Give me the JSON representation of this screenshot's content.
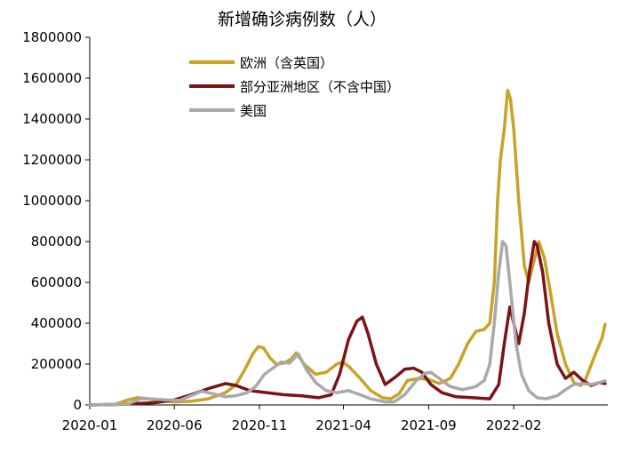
{
  "chart_data": {
    "type": "line",
    "title": "新增确诊病例数（人）",
    "xlabel": "",
    "ylabel": "",
    "ylim": [
      0,
      1800000
    ],
    "yticks": [
      0,
      200000,
      400000,
      600000,
      800000,
      1000000,
      1200000,
      1400000,
      1600000,
      1800000
    ],
    "ytick_labels": [
      "0",
      "200000",
      "400000",
      "600000",
      "800000",
      "1000000",
      "1200000",
      "1400000",
      "1600000",
      "1800000"
    ],
    "xlim": [
      "2020-01-01",
      "2022-07-20"
    ],
    "xtick_labels": [
      "2020-01",
      "2020-06",
      "2020-11",
      "2021-04",
      "2021-09",
      "2022-02"
    ],
    "grid": false,
    "legend_position": "top-center",
    "series": [
      {
        "name": "欧洲（含英国）",
        "color": "#C9A227",
        "points": [
          [
            "2020-01-01",
            0
          ],
          [
            "2020-02-15",
            2000
          ],
          [
            "2020-03-10",
            25000
          ],
          [
            "2020-03-25",
            35000
          ],
          [
            "2020-04-10",
            32000
          ],
          [
            "2020-05-01",
            22000
          ],
          [
            "2020-06-01",
            15000
          ],
          [
            "2020-07-01",
            18000
          ],
          [
            "2020-08-01",
            30000
          ],
          [
            "2020-09-01",
            60000
          ],
          [
            "2020-09-20",
            100000
          ],
          [
            "2020-10-05",
            170000
          ],
          [
            "2020-10-20",
            250000
          ],
          [
            "2020-10-30",
            285000
          ],
          [
            "2020-11-08",
            280000
          ],
          [
            "2020-11-20",
            230000
          ],
          [
            "2020-12-01",
            200000
          ],
          [
            "2020-12-15",
            205000
          ],
          [
            "2020-12-28",
            225000
          ],
          [
            "2021-01-06",
            255000
          ],
          [
            "2021-01-20",
            200000
          ],
          [
            "2021-02-10",
            150000
          ],
          [
            "2021-03-01",
            160000
          ],
          [
            "2021-03-20",
            200000
          ],
          [
            "2021-03-30",
            210000
          ],
          [
            "2021-04-10",
            190000
          ],
          [
            "2021-05-01",
            130000
          ],
          [
            "2021-05-20",
            70000
          ],
          [
            "2021-06-10",
            35000
          ],
          [
            "2021-06-25",
            30000
          ],
          [
            "2021-07-10",
            55000
          ],
          [
            "2021-07-25",
            120000
          ],
          [
            "2021-08-15",
            130000
          ],
          [
            "2021-09-01",
            125000
          ],
          [
            "2021-09-20",
            105000
          ],
          [
            "2021-10-10",
            130000
          ],
          [
            "2021-10-25",
            200000
          ],
          [
            "2021-11-10",
            300000
          ],
          [
            "2021-11-25",
            360000
          ],
          [
            "2021-12-10",
            370000
          ],
          [
            "2021-12-20",
            400000
          ],
          [
            "2021-12-28",
            600000
          ],
          [
            "2022-01-03",
            1000000
          ],
          [
            "2022-01-08",
            1200000
          ],
          [
            "2022-01-15",
            1350000
          ],
          [
            "2022-01-21",
            1540000
          ],
          [
            "2022-01-26",
            1500000
          ],
          [
            "2022-02-01",
            1350000
          ],
          [
            "2022-02-10",
            1000000
          ],
          [
            "2022-02-20",
            680000
          ],
          [
            "2022-02-28",
            600000
          ],
          [
            "2022-03-08",
            690000
          ],
          [
            "2022-03-18",
            800000
          ],
          [
            "2022-03-28",
            720000
          ],
          [
            "2022-04-08",
            550000
          ],
          [
            "2022-04-20",
            350000
          ],
          [
            "2022-05-05",
            200000
          ],
          [
            "2022-05-20",
            110000
          ],
          [
            "2022-06-01",
            95000
          ],
          [
            "2022-06-10",
            125000
          ],
          [
            "2022-06-25",
            230000
          ],
          [
            "2022-07-10",
            330000
          ],
          [
            "2022-07-15",
            395000
          ]
        ]
      },
      {
        "name": "部分亚洲地区（不含中国）",
        "color": "#7B1416",
        "points": [
          [
            "2020-01-01",
            0
          ],
          [
            "2020-03-01",
            3000
          ],
          [
            "2020-04-01",
            8000
          ],
          [
            "2020-05-01",
            12000
          ],
          [
            "2020-06-01",
            25000
          ],
          [
            "2020-07-01",
            50000
          ],
          [
            "2020-08-01",
            80000
          ],
          [
            "2020-09-01",
            105000
          ],
          [
            "2020-09-20",
            95000
          ],
          [
            "2020-10-15",
            70000
          ],
          [
            "2020-11-15",
            60000
          ],
          [
            "2020-12-15",
            50000
          ],
          [
            "2021-01-15",
            45000
          ],
          [
            "2021-02-15",
            35000
          ],
          [
            "2021-03-10",
            50000
          ],
          [
            "2021-03-25",
            150000
          ],
          [
            "2021-04-10",
            320000
          ],
          [
            "2021-04-25",
            410000
          ],
          [
            "2021-05-05",
            430000
          ],
          [
            "2021-05-15",
            350000
          ],
          [
            "2021-05-30",
            200000
          ],
          [
            "2021-06-15",
            100000
          ],
          [
            "2021-07-05",
            140000
          ],
          [
            "2021-07-20",
            175000
          ],
          [
            "2021-08-05",
            180000
          ],
          [
            "2021-08-20",
            160000
          ],
          [
            "2021-09-05",
            100000
          ],
          [
            "2021-09-25",
            60000
          ],
          [
            "2021-10-20",
            40000
          ],
          [
            "2021-11-20",
            35000
          ],
          [
            "2021-12-20",
            30000
          ],
          [
            "2022-01-05",
            100000
          ],
          [
            "2022-01-15",
            300000
          ],
          [
            "2022-01-25",
            480000
          ],
          [
            "2022-02-01",
            400000
          ],
          [
            "2022-02-10",
            300000
          ],
          [
            "2022-02-20",
            450000
          ],
          [
            "2022-03-01",
            650000
          ],
          [
            "2022-03-10",
            800000
          ],
          [
            "2022-03-15",
            780000
          ],
          [
            "2022-03-25",
            650000
          ],
          [
            "2022-04-05",
            400000
          ],
          [
            "2022-04-20",
            200000
          ],
          [
            "2022-05-05",
            130000
          ],
          [
            "2022-05-20",
            160000
          ],
          [
            "2022-06-05",
            120000
          ],
          [
            "2022-06-20",
            95000
          ],
          [
            "2022-07-05",
            110000
          ],
          [
            "2022-07-15",
            105000
          ]
        ]
      },
      {
        "name": "美国",
        "color": "#A9A9A9",
        "points": [
          [
            "2020-01-01",
            0
          ],
          [
            "2020-03-10",
            5000
          ],
          [
            "2020-04-01",
            30000
          ],
          [
            "2020-04-20",
            30000
          ],
          [
            "2020-05-15",
            25000
          ],
          [
            "2020-06-10",
            22000
          ],
          [
            "2020-07-01",
            45000
          ],
          [
            "2020-07-20",
            67000
          ],
          [
            "2020-08-10",
            55000
          ],
          [
            "2020-09-01",
            40000
          ],
          [
            "2020-09-20",
            45000
          ],
          [
            "2020-10-10",
            60000
          ],
          [
            "2020-10-25",
            90000
          ],
          [
            "2020-11-10",
            150000
          ],
          [
            "2020-11-25",
            180000
          ],
          [
            "2020-12-10",
            210000
          ],
          [
            "2020-12-25",
            205000
          ],
          [
            "2021-01-10",
            250000
          ],
          [
            "2021-01-25",
            170000
          ],
          [
            "2021-02-10",
            110000
          ],
          [
            "2021-03-01",
            70000
          ],
          [
            "2021-03-20",
            60000
          ],
          [
            "2021-04-10",
            70000
          ],
          [
            "2021-05-01",
            50000
          ],
          [
            "2021-05-20",
            30000
          ],
          [
            "2021-06-15",
            15000
          ],
          [
            "2021-07-01",
            15000
          ],
          [
            "2021-07-20",
            50000
          ],
          [
            "2021-08-10",
            120000
          ],
          [
            "2021-08-25",
            155000
          ],
          [
            "2021-09-05",
            160000
          ],
          [
            "2021-09-20",
            130000
          ],
          [
            "2021-10-10",
            90000
          ],
          [
            "2021-11-01",
            75000
          ],
          [
            "2021-11-25",
            90000
          ],
          [
            "2021-12-10",
            120000
          ],
          [
            "2021-12-20",
            200000
          ],
          [
            "2021-12-28",
            400000
          ],
          [
            "2022-01-05",
            650000
          ],
          [
            "2022-01-12",
            800000
          ],
          [
            "2022-01-18",
            780000
          ],
          [
            "2022-01-25",
            600000
          ],
          [
            "2022-02-05",
            300000
          ],
          [
            "2022-02-15",
            150000
          ],
          [
            "2022-02-28",
            70000
          ],
          [
            "2022-03-15",
            35000
          ],
          [
            "2022-04-01",
            30000
          ],
          [
            "2022-04-20",
            45000
          ],
          [
            "2022-05-05",
            75000
          ],
          [
            "2022-05-20",
            100000
          ],
          [
            "2022-06-05",
            105000
          ],
          [
            "2022-06-20",
            100000
          ],
          [
            "2022-07-05",
            110000
          ],
          [
            "2022-07-15",
            118000
          ]
        ]
      }
    ]
  }
}
